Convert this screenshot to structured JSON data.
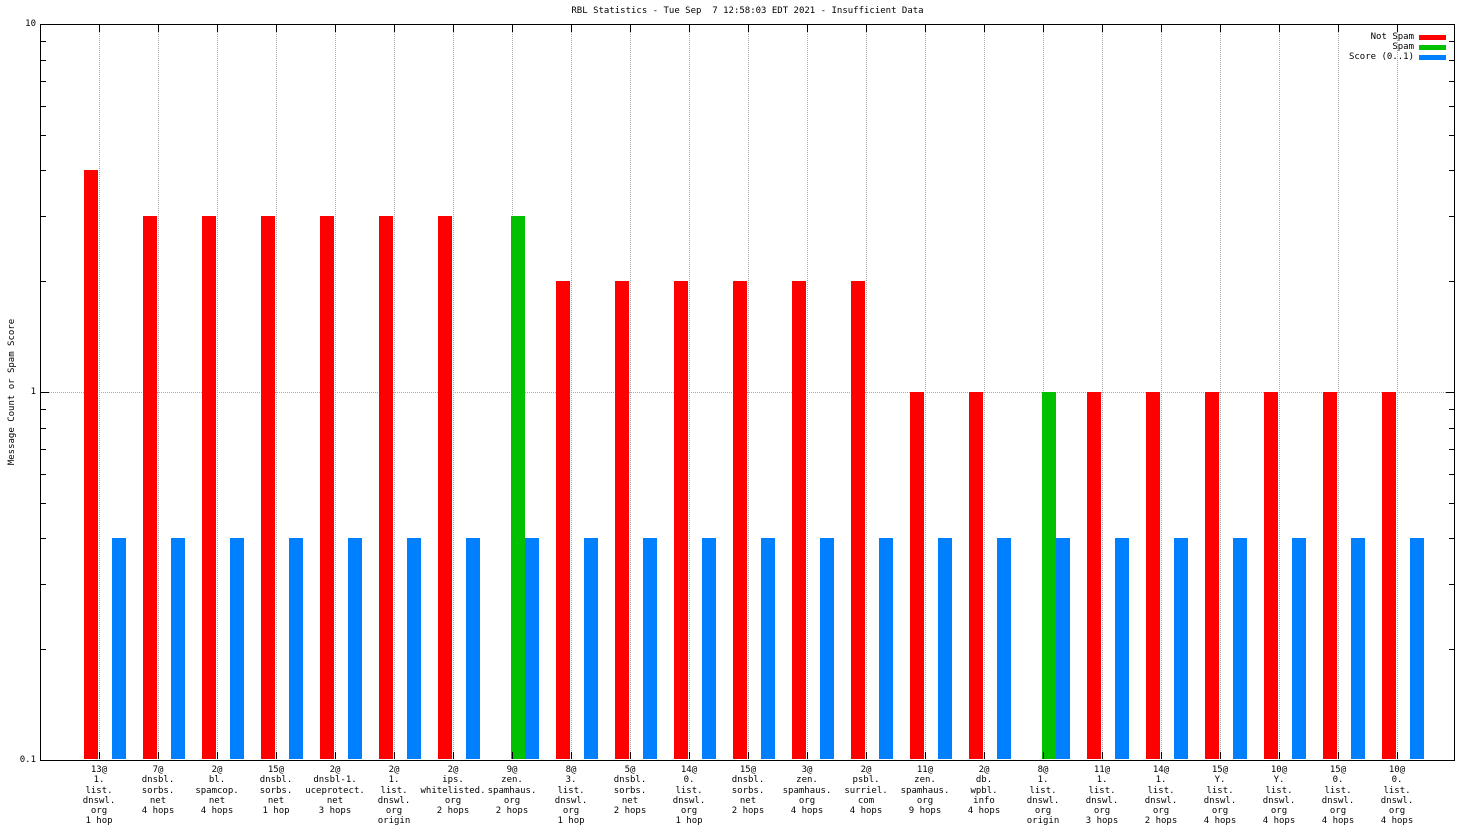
{
  "chart_data": {
    "type": "bar",
    "title": "RBL Statistics - Tue Sep  7 12:58:03 EDT 2021 - Insufficient Data",
    "ylabel": "Message Count or Spam Score",
    "y_scale": "log",
    "ylim": [
      0.1,
      10
    ],
    "y_ticks": [
      {
        "label": "10",
        "value": 10
      },
      {
        "label": "1",
        "value": 1
      },
      {
        "label": "0.1",
        "value": 0.1
      }
    ],
    "y_minor_ticks": [
      0.2,
      0.3,
      0.4,
      0.5,
      0.6,
      0.7,
      0.8,
      0.9,
      2,
      3,
      4,
      5,
      6,
      7,
      8,
      9
    ],
    "grid": {
      "horizontal_values": [
        1
      ],
      "vertical_at_each_category": true
    },
    "legend_position": "top-right",
    "legend": [
      {
        "label": "Not Spam",
        "color": "#ff0000"
      },
      {
        "label": "Spam",
        "color": "#00c000"
      },
      {
        "label": "Score (0..1)",
        "color": "#0080ff"
      }
    ],
    "categories": [
      [
        "13@",
        "1.",
        "list.",
        "dnswl.",
        "org",
        "1 hop"
      ],
      [
        "7@",
        "dnsbl.",
        "sorbs.",
        "net",
        "4 hops"
      ],
      [
        "2@",
        "bl.",
        "spamcop.",
        "net",
        "4 hops"
      ],
      [
        "15@",
        "dnsbl.",
        "sorbs.",
        "net",
        "1 hop"
      ],
      [
        "2@",
        "dnsbl-1.",
        "uceprotect.",
        "net",
        "3 hops"
      ],
      [
        "2@",
        "1.",
        "list.",
        "dnswl.",
        "org",
        "origin"
      ],
      [
        "2@",
        "ips.",
        "whitelisted.",
        "org",
        "2 hops"
      ],
      [
        "9@",
        "zen.",
        "spamhaus.",
        "org",
        "2 hops"
      ],
      [
        "8@",
        "3.",
        "list.",
        "dnswl.",
        "org",
        "1 hop"
      ],
      [
        "5@",
        "dnsbl.",
        "sorbs.",
        "net",
        "2 hops"
      ],
      [
        "14@",
        "0.",
        "list.",
        "dnswl.",
        "org",
        "1 hop"
      ],
      [
        "15@",
        "dnsbl.",
        "sorbs.",
        "net",
        "2 hops"
      ],
      [
        "3@",
        "zen.",
        "spamhaus.",
        "org",
        "4 hops"
      ],
      [
        "2@",
        "psbl.",
        "surriel.",
        "com",
        "4 hops"
      ],
      [
        "11@",
        "zen.",
        "spamhaus.",
        "org",
        "9 hops"
      ],
      [
        "2@",
        "db.",
        "wpbl.",
        "info",
        "4 hops"
      ],
      [
        "8@",
        "1.",
        "list.",
        "dnswl.",
        "org",
        "origin"
      ],
      [
        "11@",
        "1.",
        "list.",
        "dnswl.",
        "org",
        "3 hops"
      ],
      [
        "14@",
        "1.",
        "list.",
        "dnswl.",
        "org",
        "2 hops"
      ],
      [
        "15@",
        "Y.",
        "list.",
        "dnswl.",
        "org",
        "4 hops"
      ],
      [
        "10@",
        "Y.",
        "list.",
        "dnswl.",
        "org",
        "4 hops"
      ],
      [
        "15@",
        "0.",
        "list.",
        "dnswl.",
        "org",
        "4 hops"
      ],
      [
        "10@",
        "0.",
        "list.",
        "dnswl.",
        "org",
        "4 hops"
      ]
    ],
    "series": [
      {
        "name": "Not Spam",
        "color": "#ff0000",
        "values": [
          4,
          3,
          3,
          3,
          3,
          3,
          3,
          0,
          2,
          2,
          2,
          2,
          2,
          2,
          1,
          1,
          0,
          1,
          1,
          1,
          1,
          1,
          1
        ]
      },
      {
        "name": "Spam",
        "color": "#00c000",
        "values": [
          0,
          0,
          0,
          0,
          0,
          0,
          0,
          3,
          0,
          0,
          0,
          0,
          0,
          0,
          0,
          0,
          1,
          0,
          0,
          0,
          0,
          0,
          0
        ]
      },
      {
        "name": "Score (0..1)",
        "color": "#0080ff",
        "values": [
          0.4,
          0.4,
          0.4,
          0.4,
          0.4,
          0.4,
          0.4,
          0.4,
          0.4,
          0.4,
          0.4,
          0.4,
          0.4,
          0.4,
          0.4,
          0.4,
          0.4,
          0.4,
          0.4,
          0.4,
          0.4,
          0.4,
          0.4
        ]
      }
    ]
  }
}
